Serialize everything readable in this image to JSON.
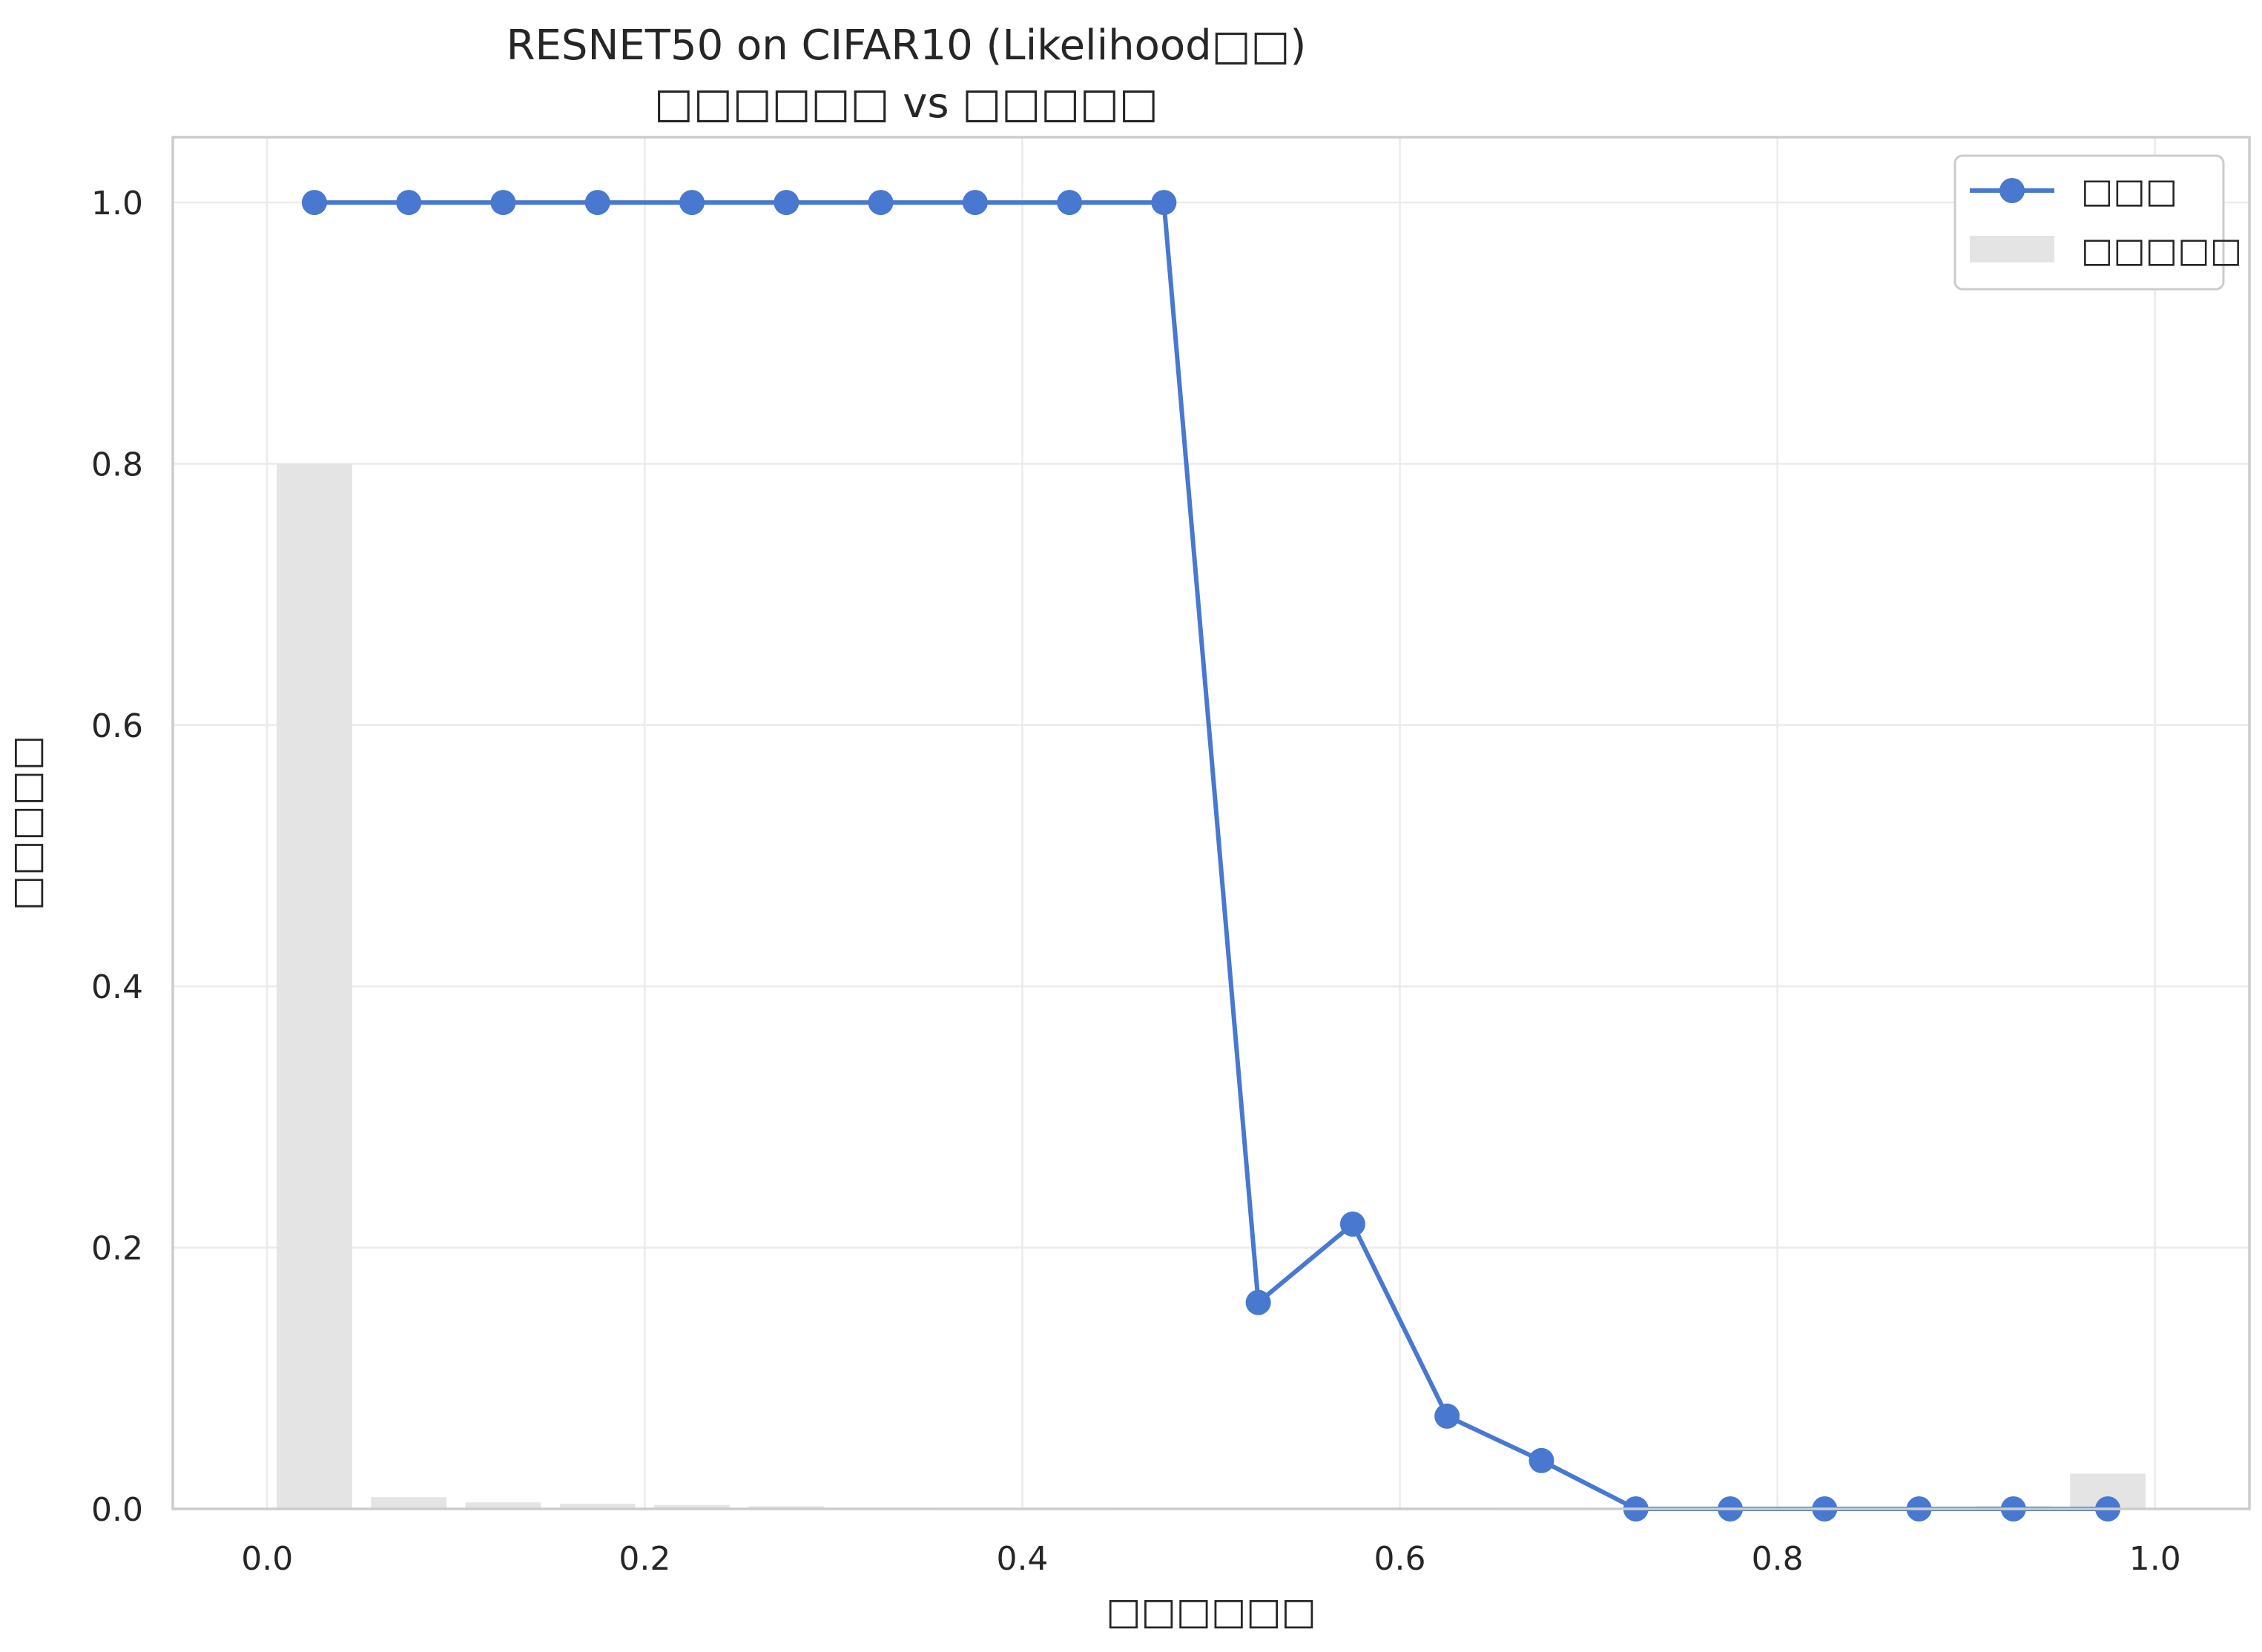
{
  "chart_data": {
    "type": "line",
    "title": "RESNET50 on CIFAR10 (Likelihood□□)",
    "subtitle": "□□□□□□ vs □□□□□",
    "xlabel": "□□□□□□",
    "ylabel": "□□□□□",
    "xlim": [
      -0.05,
      1.05
    ],
    "ylim": [
      0,
      1.05
    ],
    "xticks": [
      "0.0",
      "0.2",
      "0.4",
      "0.6",
      "0.8",
      "1.0"
    ],
    "yticks": [
      "0.0",
      "0.2",
      "0.4",
      "0.6",
      "0.8",
      "1.0"
    ],
    "grid": true,
    "legend_position": "top-right",
    "series": [
      {
        "name": "□□□",
        "kind": "line",
        "marker": "circle",
        "color": "#4878d0",
        "x": [
          0.025,
          0.075,
          0.125,
          0.175,
          0.225,
          0.275,
          0.325,
          0.375,
          0.425,
          0.475,
          0.525,
          0.575,
          0.625,
          0.675,
          0.725,
          0.775,
          0.825,
          0.875,
          0.925,
          0.975
        ],
        "y": [
          1.0,
          1.0,
          1.0,
          1.0,
          1.0,
          1.0,
          1.0,
          1.0,
          1.0,
          1.0,
          0.158,
          0.218,
          0.071,
          0.037,
          0.0,
          0.0,
          0.0,
          0.0,
          0.0,
          0.0
        ]
      },
      {
        "name": "□□□□□",
        "kind": "bar",
        "color": "#e4e4e4",
        "bar_width": 0.04,
        "x": [
          0.025,
          0.075,
          0.125,
          0.175,
          0.225,
          0.275,
          0.325,
          0.375,
          0.425,
          0.475,
          0.525,
          0.575,
          0.625,
          0.675,
          0.725,
          0.775,
          0.825,
          0.875,
          0.925,
          0.975
        ],
        "y": [
          0.8,
          0.009,
          0.005,
          0.004,
          0.003,
          0.002,
          0.001,
          0.001,
          0.001,
          0.0005,
          0.0005,
          0.0005,
          0.0005,
          0.001,
          0.0005,
          0.0005,
          0.001,
          0.001,
          0.002,
          0.027
        ]
      }
    ]
  }
}
